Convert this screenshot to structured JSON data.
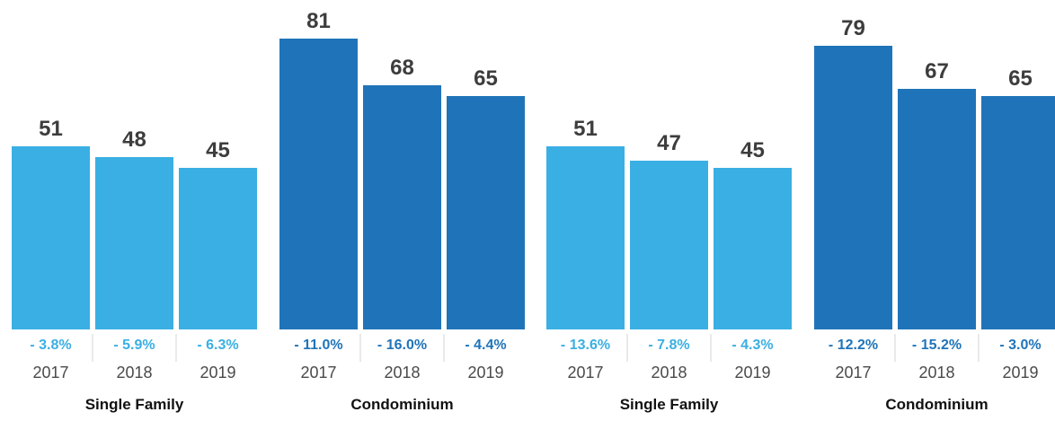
{
  "colors": {
    "single_family": "#3aafe3",
    "condominium": "#1f74b9"
  },
  "chart_data": [
    {
      "type": "bar",
      "title": "",
      "categories": [
        "2017",
        "2018",
        "2019"
      ],
      "groups": [
        {
          "label": "Single Family",
          "color_key": "single_family",
          "values": [
            51,
            48,
            45
          ],
          "changes": [
            "- 3.8%",
            "- 5.9%",
            "- 6.3%"
          ]
        },
        {
          "label": "Condominium",
          "color_key": "condominium",
          "values": [
            81,
            68,
            65
          ],
          "changes": [
            "- 11.0%",
            "- 16.0%",
            "- 4.4%"
          ]
        }
      ],
      "ylim": [
        0,
        85
      ],
      "grid": false
    },
    {
      "type": "bar",
      "title": "",
      "categories": [
        "2017",
        "2018",
        "2019"
      ],
      "groups": [
        {
          "label": "Single Family",
          "color_key": "single_family",
          "values": [
            51,
            47,
            45
          ],
          "changes": [
            "- 13.6%",
            "- 7.8%",
            "- 4.3%"
          ]
        },
        {
          "label": "Condominium",
          "color_key": "condominium",
          "values": [
            79,
            67,
            65
          ],
          "changes": [
            "- 12.2%",
            "- 15.2%",
            "- 3.0%"
          ]
        }
      ],
      "ylim": [
        0,
        85
      ],
      "grid": false
    }
  ]
}
